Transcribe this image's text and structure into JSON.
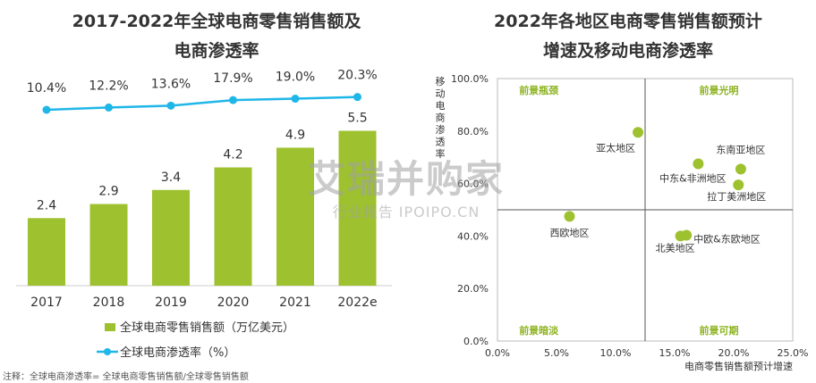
{
  "left_chart": {
    "title_line1": "2017-2022年全球电商零售销售额及",
    "title_line2": "电商渗透率"
  },
  "right_chart": {
    "title_line1": "2022年各地区电商零售销售额预计",
    "title_line2": "增速及移动电商渗透率"
  },
  "note": "注释：全球电商渗透率= 全球电商零售销售额/全球零售销售额",
  "watermark": {
    "main": "艾瑞并购家",
    "sub": "行业报告 IPOIPO.CN"
  },
  "chart_data": [
    {
      "type": "bar",
      "categories": [
        "2017",
        "2018",
        "2019",
        "2020",
        "2021",
        "2022e"
      ],
      "series": [
        {
          "name": "全球电商零售销售额（万亿美元）",
          "values": [
            2.4,
            2.9,
            3.4,
            4.2,
            4.9,
            5.5
          ],
          "labels": [
            "2.4",
            "2.9",
            "3.4",
            "4.2",
            "4.9",
            "5.5"
          ],
          "color": "#9dc12f"
        },
        {
          "name": "全球电商渗透率（%）",
          "type": "line",
          "values": [
            10.4,
            12.2,
            13.6,
            17.9,
            19.0,
            20.3
          ],
          "labels": [
            "10.4%",
            "12.2%",
            "13.6%",
            "17.9%",
            "19.0%",
            "20.3%"
          ],
          "color": "#1fb6e8"
        }
      ],
      "legend_position": "bottom"
    },
    {
      "type": "scatter",
      "xlabel": "电商零售销售额预计增速",
      "ylabel": "移动电商渗透率",
      "xlim": [
        0,
        25
      ],
      "ylim": [
        0,
        100
      ],
      "x_ticks": [
        "0.0%",
        "5.0%",
        "10.0%",
        "15.0%",
        "20.0%",
        "25.0%"
      ],
      "y_ticks": [
        "0.0%",
        "20.0%",
        "40.0%",
        "60.0%",
        "80.0%",
        "100.0%"
      ],
      "divider_x": 12.5,
      "divider_y": 50,
      "quadrants": [
        "前景瓶颈",
        "前景光明",
        "前景暗淡",
        "前景可期"
      ],
      "points": [
        {
          "label": "亚太地区",
          "x": 11.9,
          "y": 79.5
        },
        {
          "label": "东南亚地区",
          "x": 20.6,
          "y": 65.5
        },
        {
          "label": "中东&非洲地区",
          "x": 17.0,
          "y": 67.5
        },
        {
          "label": "拉丁美洲地区",
          "x": 20.4,
          "y": 59.5
        },
        {
          "label": "西欧地区",
          "x": 6.1,
          "y": 47.5
        },
        {
          "label": "北美地区",
          "x": 15.5,
          "y": 40.0
        },
        {
          "label": "中欧&东欧地区",
          "x": 16.0,
          "y": 40.3
        }
      ],
      "color": "#9dc12f",
      "quadrant_label_color": "#8db321"
    }
  ]
}
